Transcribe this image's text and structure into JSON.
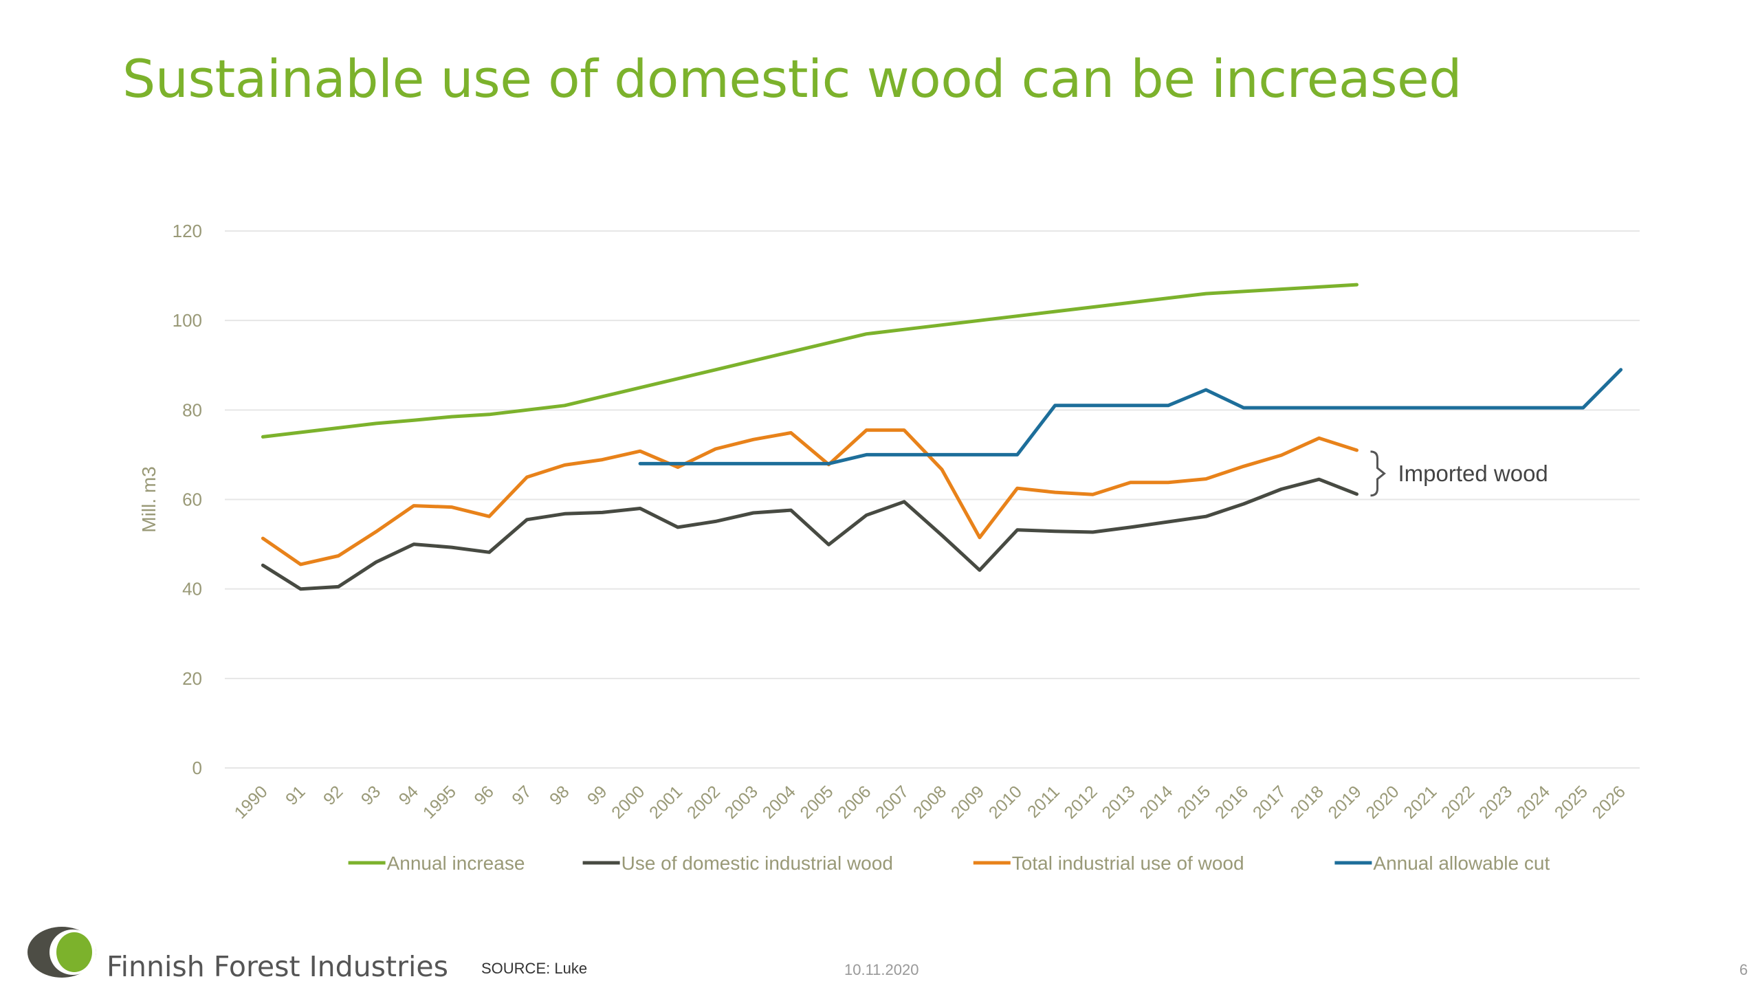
{
  "slide": {
    "title": "Sustainable use of domestic wood can be increased",
    "brand_name": "Finnish Forest Industries",
    "source": "SOURCE: Luke",
    "date": "10.11.2020",
    "page_number": "6"
  },
  "colors": {
    "title": "#7cb22c",
    "annual_increase": "#7cb22c",
    "domestic": "#474a42",
    "total": "#e8821a",
    "allowable": "#1d6e9a",
    "grid": "#e6e6e6",
    "axis_text": "#999977",
    "logo_dark": "#4d4d45",
    "logo_green": "#7cb22c"
  },
  "chart_data": {
    "type": "line",
    "title": "",
    "xlabel": "",
    "ylabel": "Mill. m3",
    "ylim": [
      0,
      120
    ],
    "yticks": [
      0,
      20,
      40,
      60,
      80,
      100,
      120
    ],
    "grid": true,
    "legend_position": "bottom",
    "categories": [
      "1990",
      "91",
      "92",
      "93",
      "94",
      "1995",
      "96",
      "97",
      "98",
      "99",
      "2000",
      "2001",
      "2002",
      "2003",
      "2004",
      "2005",
      "2006",
      "2007",
      "2008",
      "2009",
      "2010",
      "2011",
      "2012",
      "2013",
      "2014",
      "2015",
      "2016",
      "2017",
      "2018",
      "2019",
      "2020",
      "2021",
      "2022",
      "2023",
      "2024",
      "2025",
      "2026"
    ],
    "series": [
      {
        "name": "Annual increase",
        "color_key": "annual_increase",
        "values": [
          74,
          75,
          76,
          77,
          77.7,
          78.5,
          79,
          80,
          81,
          83,
          85,
          87,
          89,
          91,
          93,
          95,
          97,
          98,
          99,
          100,
          101,
          102,
          103,
          104,
          105,
          106,
          106.5,
          107,
          107.5,
          108,
          null,
          null,
          null,
          null,
          null,
          null,
          null
        ]
      },
      {
        "name": "Use of domestic industrial wood",
        "color_key": "domestic",
        "values": [
          45.3,
          40,
          40.5,
          46,
          50,
          49.3,
          48.2,
          55.5,
          56.8,
          57.1,
          58,
          53.8,
          55.1,
          57,
          57.6,
          49.9,
          56.5,
          59.5,
          52,
          44.2,
          53.2,
          52.9,
          52.7,
          53.8,
          55,
          56.2,
          59,
          62.3,
          64.5,
          61.2,
          null,
          null,
          null,
          null,
          null,
          null,
          null
        ]
      },
      {
        "name": "Total industrial use of wood",
        "color_key": "total",
        "values": [
          51.3,
          45.5,
          47.4,
          52.8,
          58.6,
          58.3,
          56.2,
          65,
          67.7,
          68.9,
          70.8,
          67.2,
          71.3,
          73.4,
          74.9,
          67.8,
          75.5,
          75.5,
          66.7,
          51.5,
          62.5,
          61.6,
          61.1,
          63.8,
          63.8,
          64.6,
          67.4,
          69.9,
          73.7,
          71,
          null,
          null,
          null,
          null,
          null,
          null,
          null
        ]
      },
      {
        "name": "Annual allowable cut",
        "color_key": "allowable",
        "values": [
          null,
          null,
          null,
          null,
          null,
          null,
          null,
          null,
          null,
          null,
          68,
          68,
          68,
          68,
          68,
          68,
          70,
          70,
          70,
          70,
          70,
          81,
          81,
          81,
          81,
          84.5,
          80.5,
          80.5,
          80.5,
          80.5,
          80.5,
          80.5,
          80.5,
          80.5,
          80.5,
          80.5,
          89
        ]
      }
    ],
    "annotations": [
      {
        "text": "Imported wood",
        "category": "2019",
        "y_from": 61.2,
        "y_to": 71
      }
    ]
  }
}
